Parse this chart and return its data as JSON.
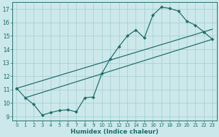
{
  "xlabel": "Humidex (Indice chaleur)",
  "xlim": [
    -0.5,
    23.5
  ],
  "ylim": [
    8.7,
    17.5
  ],
  "yticks": [
    9,
    10,
    11,
    12,
    13,
    14,
    15,
    16,
    17
  ],
  "xticks": [
    0,
    1,
    2,
    3,
    4,
    5,
    6,
    7,
    8,
    9,
    10,
    11,
    12,
    13,
    14,
    15,
    16,
    17,
    18,
    19,
    20,
    21,
    22,
    23
  ],
  "bg_color": "#cce8ea",
  "grid_color": "#a8cfd3",
  "line_color": "#1d6b6a",
  "jagged_x": [
    0,
    1,
    2,
    3,
    4,
    5,
    6,
    7,
    8,
    9,
    10,
    11,
    12,
    13,
    14,
    15,
    16,
    17,
    18,
    19,
    20,
    21,
    22,
    23
  ],
  "jagged_y": [
    11.1,
    10.4,
    9.9,
    9.1,
    9.3,
    9.45,
    9.5,
    9.35,
    10.4,
    10.45,
    12.2,
    13.3,
    14.2,
    15.0,
    15.45,
    14.85,
    16.55,
    17.15,
    17.05,
    16.85,
    16.1,
    15.8,
    15.3,
    14.75
  ],
  "upper_line_x": [
    0,
    23
  ],
  "upper_line_y": [
    11.1,
    15.5
  ],
  "lower_line_x": [
    1,
    23
  ],
  "lower_line_y": [
    10.4,
    14.75
  ]
}
